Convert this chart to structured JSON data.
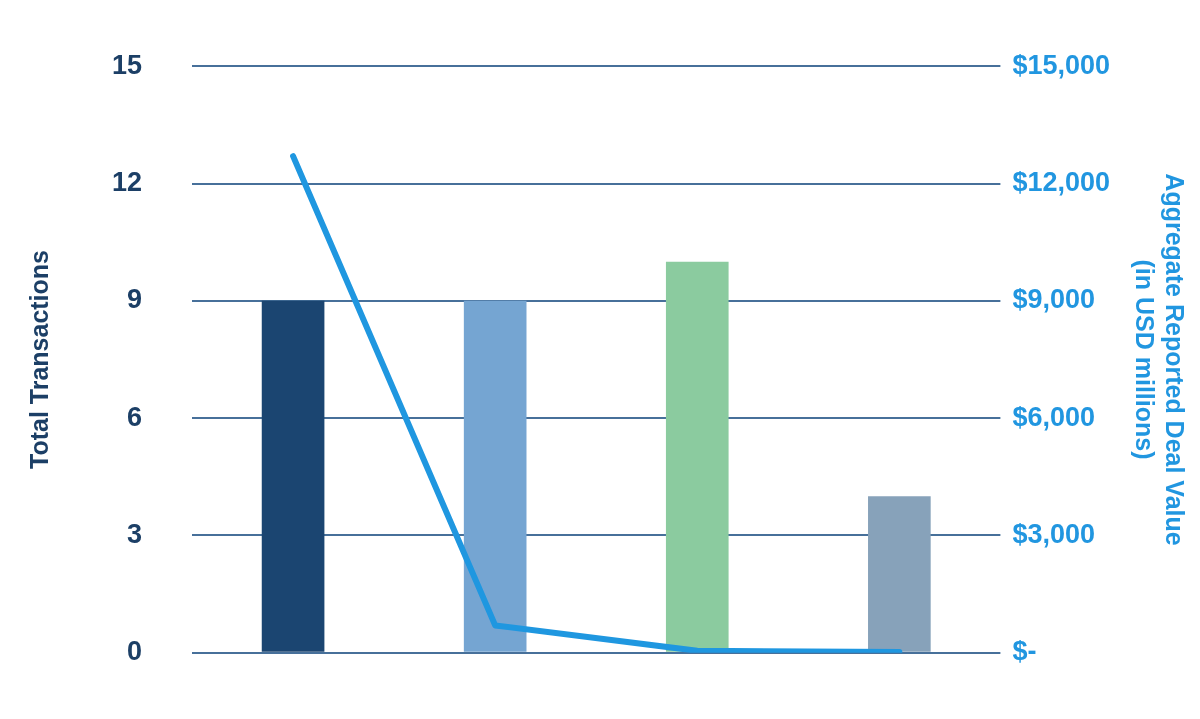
{
  "chart_data": {
    "type": "bar",
    "ylabel": "Total Transactions",
    "y2label": "Aggregate Reported Deal Value\n(in USD millions)",
    "categories": [
      null,
      null,
      null,
      null
    ],
    "series": [
      {
        "colors": [
          "#1b4571",
          "#75a5d2",
          "#8bcb9f",
          "#87a2ba"
        ],
        "values": [
          9,
          9,
          10,
          4
        ]
      },
      {
        "type": "line",
        "axis": "y2",
        "color": "#1f97e0",
        "values": [
          12700,
          700,
          50,
          20
        ]
      }
    ],
    "ylim": [
      0,
      15
    ],
    "yticks": [
      0,
      3,
      6,
      9,
      12,
      15
    ],
    "y2lim": [
      0,
      15000
    ],
    "y2ticks": [
      {
        "value": 0,
        "label": "$-"
      },
      {
        "value": 3000,
        "label": "$3,000"
      },
      {
        "value": 6000,
        "label": "$6,000"
      },
      {
        "value": 9000,
        "label": "$9,000"
      },
      {
        "value": 12000,
        "label": "$12,000"
      },
      {
        "value": 15000,
        "label": "$15,000"
      }
    ],
    "grid": "y",
    "legend": false,
    "marker": "none",
    "line_style": "solid"
  }
}
